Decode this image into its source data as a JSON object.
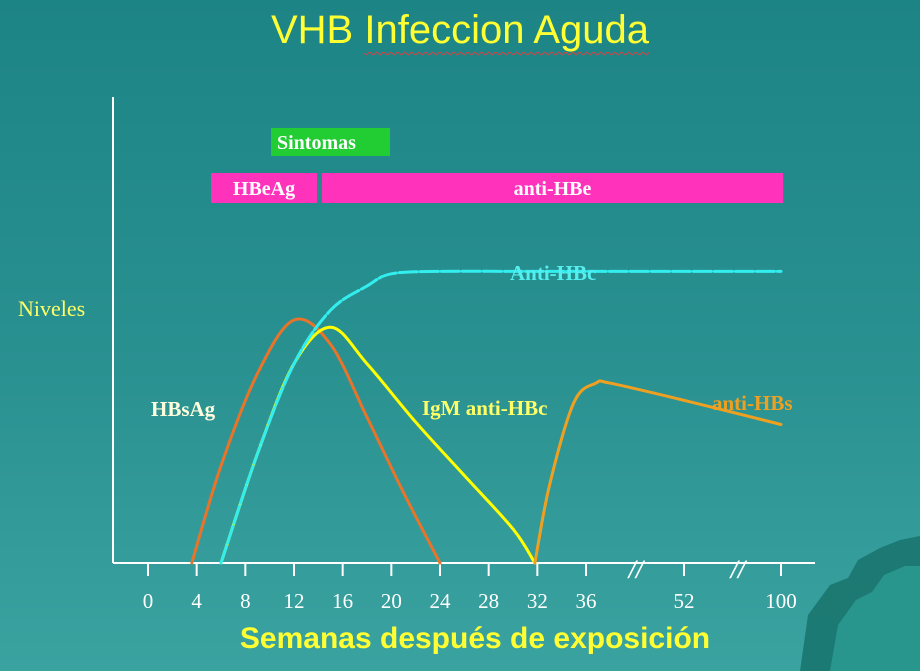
{
  "title": {
    "main": "VHB ",
    "underlined": "Infeccion Aguda"
  },
  "colors": {
    "background": "#238a8b",
    "title": "#ffff33",
    "sintomas": "#22cc33",
    "hbe_bars": "#ff33bb",
    "HBsAg": "#e8742a",
    "IgM": "#ffff00",
    "AntiHBc": "#33eeee",
    "antiHBs": "#f0a020",
    "axis": "#ffffff"
  },
  "chart_data": {
    "type": "line",
    "title": "VHB Infeccion Aguda",
    "xlabel": "Semanas después de exposición",
    "ylabel": "Niveles",
    "x_ticks": [
      "0",
      "4",
      "8",
      "12",
      "16",
      "20",
      "24",
      "28",
      "32",
      "36",
      "52",
      "100"
    ],
    "axis_breaks": [
      "//",
      "//"
    ],
    "bars": [
      {
        "label": "Sintomas",
        "start": 10,
        "end": 19.7
      },
      {
        "label": "HBeAg",
        "start": 5.3,
        "end": 13.9
      },
      {
        "label": "anti-HBe",
        "start": 14.3,
        "end": 52
      }
    ],
    "series": [
      {
        "name": "HBsAg",
        "points": [
          [
            3.6,
            0
          ],
          [
            6,
            0.4
          ],
          [
            9,
            0.78
          ],
          [
            12,
            1
          ],
          [
            15,
            0.9
          ],
          [
            18,
            0.6
          ],
          [
            21,
            0.29
          ],
          [
            24,
            0
          ]
        ]
      },
      {
        "name": "IgM anti-HBc",
        "points": [
          [
            6,
            0
          ],
          [
            9,
            0.45
          ],
          [
            12,
            0.82
          ],
          [
            15,
            0.97
          ],
          [
            18,
            0.82
          ],
          [
            22,
            0.58
          ],
          [
            26,
            0.36
          ],
          [
            30,
            0.14
          ],
          [
            31.8,
            0
          ]
        ]
      },
      {
        "name": "Anti-HBc",
        "points": [
          [
            6,
            0
          ],
          [
            9,
            0.45
          ],
          [
            12,
            0.82
          ],
          [
            15,
            1.04
          ],
          [
            18,
            1.14
          ],
          [
            20,
            1.19
          ],
          [
            24,
            1.2
          ],
          [
            30,
            1.2
          ],
          [
            36,
            1.2
          ],
          [
            44,
            1.2
          ],
          [
            52,
            1.2
          ]
        ]
      },
      {
        "name": "anti-HBs",
        "points": [
          [
            31.8,
            0
          ],
          [
            33,
            0.32
          ],
          [
            35,
            0.66
          ],
          [
            36.8,
            0.74
          ],
          [
            38,
            0.74
          ],
          [
            44,
            0.67
          ],
          [
            52,
            0.57
          ]
        ]
      }
    ]
  }
}
